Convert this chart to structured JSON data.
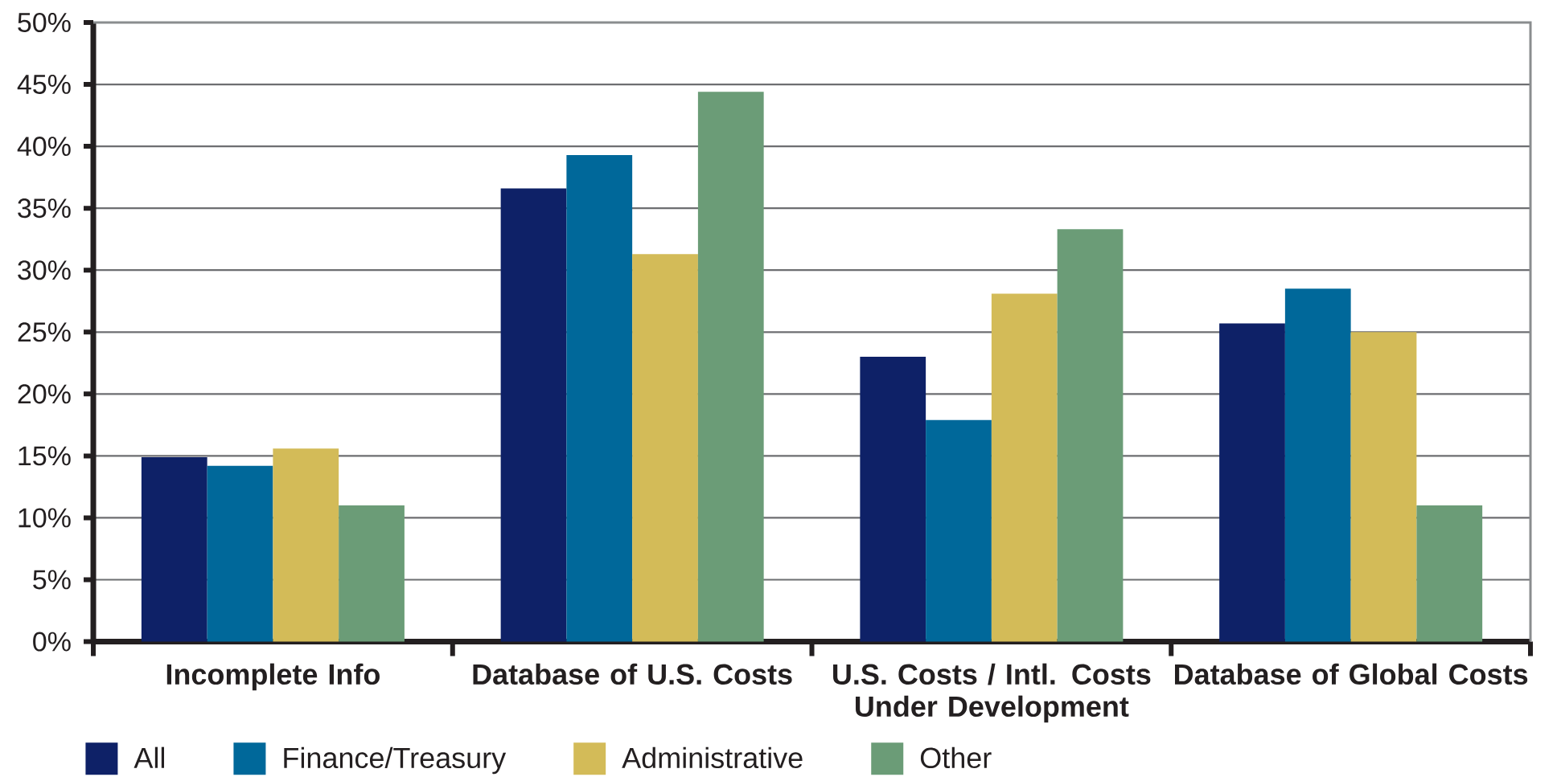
{
  "chart_data": {
    "type": "bar",
    "categories": [
      "Incomplete Info",
      "Database of U.S. Costs",
      "U.S. Costs / Intl. Costs Under Development",
      "Database of Global Costs"
    ],
    "series": [
      {
        "name": "All",
        "color": "#0e2167",
        "values": [
          14.9,
          36.6,
          23.0,
          25.7
        ]
      },
      {
        "name": "Finance/Treasury",
        "color": "#00689a",
        "values": [
          14.2,
          39.3,
          17.9,
          28.5
        ]
      },
      {
        "name": "Administrative",
        "color": "#d3bb58",
        "values": [
          15.6,
          31.3,
          28.1,
          25.0
        ]
      },
      {
        "name": "Other",
        "color": "#6b9c77",
        "values": [
          11.0,
          44.4,
          33.3,
          11.0
        ]
      }
    ],
    "ylim": [
      0,
      50
    ],
    "yticks": [
      {
        "value": 0,
        "label": "0%"
      },
      {
        "value": 5,
        "label": "5%"
      },
      {
        "value": 10,
        "label": "10%"
      },
      {
        "value": 15,
        "label": "15%"
      },
      {
        "value": 20,
        "label": "20%"
      },
      {
        "value": 25,
        "label": "25%"
      },
      {
        "value": 30,
        "label": "30%"
      },
      {
        "value": 35,
        "label": "35%"
      },
      {
        "value": 40,
        "label": "40%"
      },
      {
        "value": 45,
        "label": "45%"
      },
      {
        "value": 50,
        "label": "50%"
      }
    ],
    "grid": "y",
    "legend": "bottom"
  }
}
